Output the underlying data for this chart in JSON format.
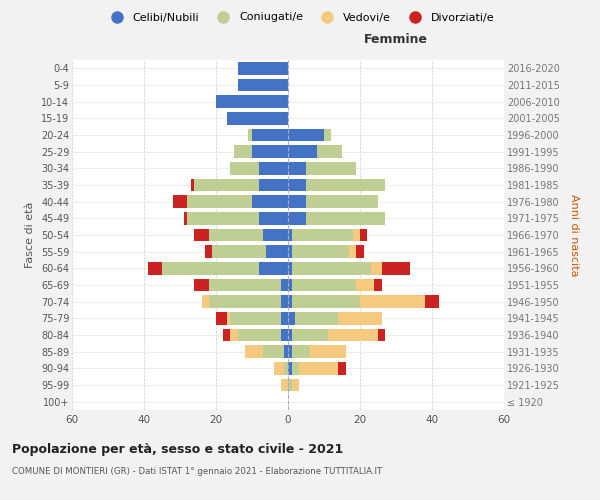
{
  "age_groups": [
    "100+",
    "95-99",
    "90-94",
    "85-89",
    "80-84",
    "75-79",
    "70-74",
    "65-69",
    "60-64",
    "55-59",
    "50-54",
    "45-49",
    "40-44",
    "35-39",
    "30-34",
    "25-29",
    "20-24",
    "15-19",
    "10-14",
    "5-9",
    "0-4"
  ],
  "birth_years": [
    "≤ 1920",
    "1921-1925",
    "1926-1930",
    "1931-1935",
    "1936-1940",
    "1941-1945",
    "1946-1950",
    "1951-1955",
    "1956-1960",
    "1961-1965",
    "1966-1970",
    "1971-1975",
    "1976-1980",
    "1981-1985",
    "1986-1990",
    "1991-1995",
    "1996-2000",
    "2001-2005",
    "2006-2010",
    "2011-2015",
    "2016-2020"
  ],
  "colors": {
    "celibi": "#4472C4",
    "coniugati": "#BFCE93",
    "vedovi": "#F5C97E",
    "divorziati": "#CC2222"
  },
  "males": {
    "celibi": [
      0,
      0,
      0,
      1,
      2,
      2,
      2,
      2,
      8,
      6,
      7,
      8,
      10,
      8,
      8,
      10,
      10,
      17,
      20,
      14,
      14
    ],
    "coniugati": [
      0,
      0,
      1,
      6,
      12,
      14,
      20,
      20,
      27,
      15,
      15,
      20,
      18,
      18,
      8,
      5,
      1,
      0,
      0,
      0,
      0
    ],
    "vedovi": [
      0,
      2,
      3,
      5,
      2,
      1,
      2,
      0,
      0,
      0,
      0,
      0,
      0,
      0,
      0,
      0,
      0,
      0,
      0,
      0,
      0
    ],
    "divorziati": [
      0,
      0,
      0,
      0,
      2,
      3,
      0,
      4,
      4,
      2,
      4,
      1,
      4,
      1,
      0,
      0,
      0,
      0,
      0,
      0,
      0
    ]
  },
  "females": {
    "nubili": [
      0,
      0,
      1,
      1,
      1,
      2,
      1,
      1,
      1,
      1,
      1,
      5,
      5,
      5,
      5,
      8,
      10,
      0,
      0,
      0,
      0
    ],
    "coniugate": [
      0,
      1,
      2,
      5,
      10,
      12,
      19,
      18,
      22,
      16,
      17,
      22,
      20,
      22,
      14,
      7,
      2,
      0,
      0,
      0,
      0
    ],
    "vedove": [
      0,
      2,
      11,
      10,
      14,
      12,
      18,
      5,
      3,
      2,
      2,
      0,
      0,
      0,
      0,
      0,
      0,
      0,
      0,
      0,
      0
    ],
    "divorziate": [
      0,
      0,
      2,
      0,
      2,
      0,
      4,
      2,
      8,
      2,
      2,
      0,
      0,
      0,
      0,
      0,
      0,
      0,
      0,
      0,
      0
    ]
  },
  "xlim": 60,
  "title": "Popolazione per età, sesso e stato civile - 2021",
  "subtitle": "COMUNE DI MONTIERI (GR) - Dati ISTAT 1° gennaio 2021 - Elaborazione TUTTITALIA.IT",
  "ylabel_left": "Fasce di età",
  "ylabel_right": "Anni di nascita",
  "xlabel_right": "Femmine",
  "legend_labels": [
    "Celibi/Nubili",
    "Coniugati/e",
    "Vedovi/e",
    "Divorziati/e"
  ],
  "bg_color": "#F2F2F2",
  "plot_bg": "#FFFFFF"
}
